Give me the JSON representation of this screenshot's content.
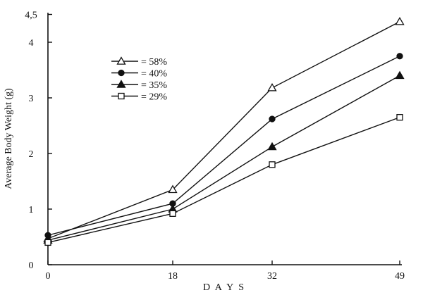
{
  "chart_data": {
    "type": "line",
    "title": "",
    "xlabel": "D A Y S",
    "ylabel": "Average Body Weight (g)",
    "x": [
      0,
      18,
      32,
      49
    ],
    "x_tick_labels": [
      "0",
      "18",
      "32",
      "49"
    ],
    "xlim": [
      0,
      49
    ],
    "y_tick_labels": [
      "0",
      "1",
      "2",
      "3",
      "4",
      "4,5"
    ],
    "y_tick_values": [
      0,
      1,
      2,
      3,
      4,
      4.5
    ],
    "ylim": [
      0,
      4.5
    ],
    "grid": false,
    "legend_position": "upper-left",
    "series": [
      {
        "name": "= 58%",
        "marker": "triangle-open",
        "values": [
          0.47,
          1.35,
          3.18,
          4.37
        ]
      },
      {
        "name": "= 40%",
        "marker": "circle-filled",
        "values": [
          0.53,
          1.1,
          2.62,
          3.75
        ]
      },
      {
        "name": "= 35%",
        "marker": "triangle-filled",
        "values": [
          0.44,
          1.0,
          2.12,
          3.4
        ]
      },
      {
        "name": "= 29%",
        "marker": "square-open",
        "values": [
          0.4,
          0.92,
          1.8,
          2.65
        ]
      }
    ]
  }
}
